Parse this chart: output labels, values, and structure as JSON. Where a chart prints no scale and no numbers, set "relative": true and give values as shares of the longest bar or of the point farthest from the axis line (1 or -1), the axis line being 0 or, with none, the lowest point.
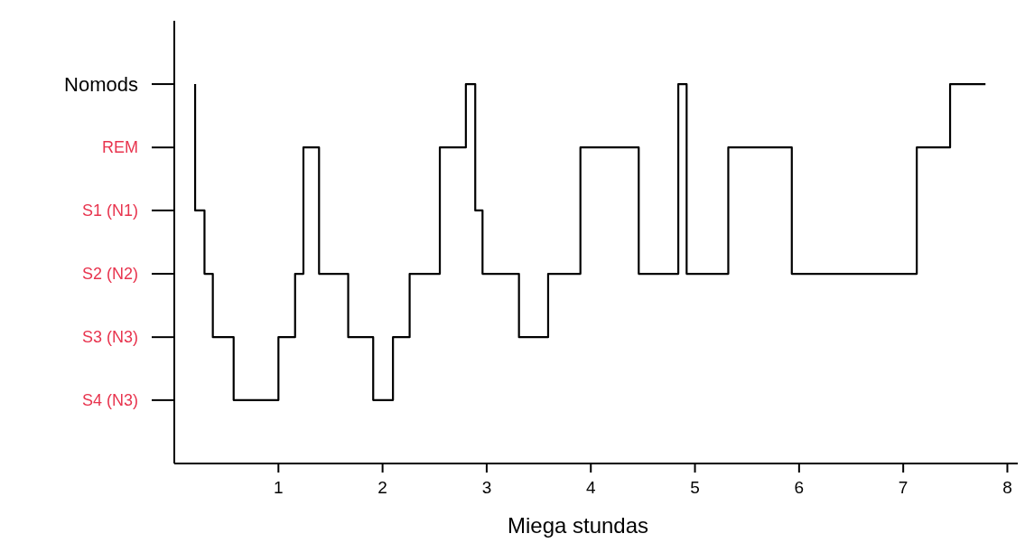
{
  "chart_data": {
    "type": "step",
    "xlabel": "Miega stundas",
    "relative": true,
    "annotations": [
      "Nomods",
      "REM",
      "S1 (N1)",
      "S2 (N2)",
      "S3 (N3)",
      "S4 (N3)"
    ],
    "x": [
      0.2,
      0.2,
      0.29,
      0.37,
      0.57,
      1.0,
      1.16,
      1.24,
      1.39,
      1.67,
      1.91,
      2.1,
      2.26,
      2.55,
      2.8,
      2.89,
      2.96,
      3.31,
      3.59,
      3.9,
      4.46,
      4.84,
      4.92,
      5.32,
      5.93,
      7.13,
      7.45,
      7.79
    ],
    "series": [
      {
        "color": "#000000",
        "values": [
          1,
          0.667,
          0.5,
          0.333,
          0.167,
          0.333,
          0.5,
          0.833,
          0.5,
          0.333,
          0.167,
          0.333,
          0.5,
          0.833,
          1,
          0.667,
          0.5,
          0.333,
          0.5,
          0.833,
          0.5,
          1,
          0.5,
          0.833,
          0.5,
          0.833,
          1,
          1
        ]
      }
    ],
    "xlim": [
      0,
      8.1
    ],
    "xticks": [
      1,
      2,
      3,
      4,
      5,
      6,
      7,
      8
    ],
    "grid": false
  }
}
